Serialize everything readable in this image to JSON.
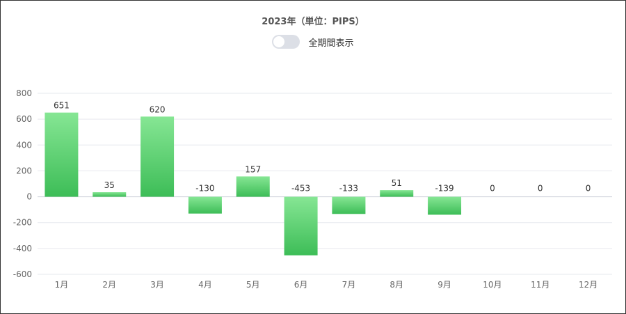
{
  "header": {
    "title": "2023年（単位：PIPS）",
    "toggle_label": "全期間表示",
    "toggle_on": false
  },
  "colors": {
    "bar_top": "#86e694",
    "bar_bottom": "#3dbd57",
    "grid": "#e6e8ee",
    "axis": "#cfd3dc"
  },
  "chart_data": {
    "type": "bar",
    "title": "2023年（単位：PIPS）",
    "categories": [
      "1月",
      "2月",
      "3月",
      "4月",
      "5月",
      "6月",
      "7月",
      "8月",
      "9月",
      "10月",
      "11月",
      "12月"
    ],
    "values": [
      651,
      35,
      620,
      -130,
      157,
      -453,
      -133,
      51,
      -139,
      0,
      0,
      0
    ],
    "ylim": [
      -600,
      800
    ],
    "yticks": [
      800,
      600,
      400,
      200,
      0,
      -200,
      -400,
      -600
    ],
    "grid": true,
    "data_labels": true
  }
}
